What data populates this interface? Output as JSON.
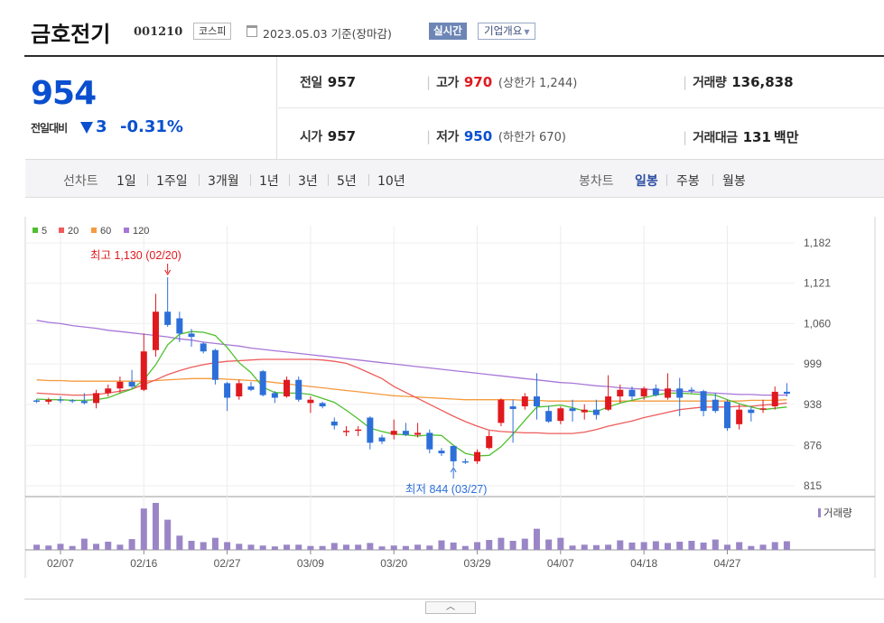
{
  "header": {
    "name": "금호전기",
    "code": "001210",
    "market": "코스피",
    "date": "2023.05.03",
    "basis": "기준(장마감)",
    "realtime_label": "실시간",
    "info_label": "기업개요"
  },
  "price": {
    "current": "954",
    "change_label": "전일대비",
    "change": "3",
    "change_direction": "down",
    "rate": "-0.31%"
  },
  "stats": {
    "prev_label": "전일",
    "prev": "957",
    "open_label": "시가",
    "open": "957",
    "high_label": "고가",
    "high": "970",
    "upper_limit_label": "상한가",
    "upper_limit": "1,244",
    "low_label": "저가",
    "low": "950",
    "lower_limit_label": "하한가",
    "lower_limit": "670",
    "volume_label": "거래량",
    "volume": "136,838",
    "amount_label": "거래대금",
    "amount": "131",
    "amount_unit": "백만"
  },
  "toolbar": {
    "line_chart_label": "선차트",
    "periods": [
      "1일",
      "1주일",
      "3개월",
      "1년",
      "3년",
      "5년",
      "10년"
    ],
    "candle_chart_label": "봉차트",
    "candle_periods": [
      "일봉",
      "주봉",
      "월봉"
    ],
    "candle_selected": "일봉"
  },
  "colors": {
    "up": "#e0191e",
    "down": "#2d6fd9",
    "ma5": "#4fbf2e",
    "ma20": "#ef5b5b",
    "ma60": "#f59a3f",
    "ma120": "#a777d8",
    "volume": "#9a86c6"
  },
  "chart_data": {
    "type": "candlestick",
    "legend": [
      {
        "name": "5",
        "color": "#4fbf2e"
      },
      {
        "name": "20",
        "color": "#ef5b5b"
      },
      {
        "name": "60",
        "color": "#f59a3f"
      },
      {
        "name": "120",
        "color": "#a777d8"
      }
    ],
    "y_ticks": [
      "1,182",
      "1,121",
      "1,060",
      "999",
      "938",
      "876",
      "815"
    ],
    "ylim": [
      815,
      1182
    ],
    "x_ticks": [
      "02/07",
      "02/16",
      "02/27",
      "03/09",
      "03/20",
      "03/29",
      "04/07",
      "04/18",
      "04/27"
    ],
    "high_annotation": "최고 1,130 (02/20)",
    "low_annotation": "최저 844 (03/27)",
    "volume_label": "거래량",
    "candles": [
      {
        "d": "02/03",
        "o": 944,
        "h": 946,
        "l": 940,
        "c": 942
      },
      {
        "d": "02/06",
        "o": 942,
        "h": 948,
        "l": 938,
        "c": 945
      },
      {
        "d": "02/07",
        "o": 945,
        "h": 950,
        "l": 940,
        "c": 944
      },
      {
        "d": "02/08",
        "o": 944,
        "h": 946,
        "l": 940,
        "c": 943
      },
      {
        "d": "02/09",
        "o": 943,
        "h": 955,
        "l": 938,
        "c": 940
      },
      {
        "d": "02/10",
        "o": 940,
        "h": 960,
        "l": 932,
        "c": 955
      },
      {
        "d": "02/13",
        "o": 955,
        "h": 968,
        "l": 950,
        "c": 962
      },
      {
        "d": "02/14",
        "o": 962,
        "h": 980,
        "l": 955,
        "c": 972
      },
      {
        "d": "02/15",
        "o": 972,
        "h": 990,
        "l": 962,
        "c": 965
      },
      {
        "d": "02/16",
        "o": 960,
        "h": 1045,
        "l": 958,
        "c": 1018
      },
      {
        "d": "02/17",
        "o": 1020,
        "h": 1105,
        "l": 1010,
        "c": 1078
      },
      {
        "d": "02/20",
        "o": 1078,
        "h": 1130,
        "l": 1055,
        "c": 1058
      },
      {
        "d": "02/21",
        "o": 1068,
        "h": 1078,
        "l": 1032,
        "c": 1045
      },
      {
        "d": "02/22",
        "o": 1045,
        "h": 1052,
        "l": 1025,
        "c": 1040
      },
      {
        "d": "02/23",
        "o": 1030,
        "h": 1032,
        "l": 1015,
        "c": 1018
      },
      {
        "d": "02/24",
        "o": 1020,
        "h": 1022,
        "l": 968,
        "c": 975
      },
      {
        "d": "02/27",
        "o": 970,
        "h": 972,
        "l": 928,
        "c": 948
      },
      {
        "d": "02/28",
        "o": 950,
        "h": 975,
        "l": 945,
        "c": 970
      },
      {
        "d": "03/02",
        "o": 965,
        "h": 972,
        "l": 958,
        "c": 960
      },
      {
        "d": "03/03",
        "o": 988,
        "h": 990,
        "l": 950,
        "c": 952
      },
      {
        "d": "03/06",
        "o": 955,
        "h": 958,
        "l": 940,
        "c": 948
      },
      {
        "d": "03/07",
        "o": 950,
        "h": 980,
        "l": 948,
        "c": 975
      },
      {
        "d": "03/08",
        "o": 975,
        "h": 980,
        "l": 942,
        "c": 945
      },
      {
        "d": "03/09",
        "o": 940,
        "h": 950,
        "l": 925,
        "c": 945
      },
      {
        "d": "03/10",
        "o": 940,
        "h": 942,
        "l": 932,
        "c": 935
      },
      {
        "d": "03/13",
        "o": 912,
        "h": 918,
        "l": 900,
        "c": 906
      },
      {
        "d": "03/14",
        "o": 896,
        "h": 905,
        "l": 890,
        "c": 898
      },
      {
        "d": "03/15",
        "o": 898,
        "h": 905,
        "l": 890,
        "c": 900
      },
      {
        "d": "03/16",
        "o": 918,
        "h": 920,
        "l": 870,
        "c": 880
      },
      {
        "d": "03/17",
        "o": 888,
        "h": 892,
        "l": 878,
        "c": 882
      },
      {
        "d": "03/20",
        "o": 892,
        "h": 915,
        "l": 885,
        "c": 898
      },
      {
        "d": "03/21",
        "o": 898,
        "h": 910,
        "l": 890,
        "c": 892
      },
      {
        "d": "03/22",
        "o": 892,
        "h": 910,
        "l": 888,
        "c": 895
      },
      {
        "d": "03/23",
        "o": 895,
        "h": 900,
        "l": 864,
        "c": 870
      },
      {
        "d": "03/24",
        "o": 868,
        "h": 872,
        "l": 860,
        "c": 864
      },
      {
        "d": "03/27",
        "o": 875,
        "h": 876,
        "l": 844,
        "c": 852
      },
      {
        "d": "03/28",
        "o": 852,
        "h": 856,
        "l": 848,
        "c": 850
      },
      {
        "d": "03/29",
        "o": 852,
        "h": 870,
        "l": 848,
        "c": 866
      },
      {
        "d": "03/30",
        "o": 872,
        "h": 898,
        "l": 870,
        "c": 890
      },
      {
        "d": "03/31",
        "o": 910,
        "h": 947,
        "l": 905,
        "c": 945
      },
      {
        "d": "04/03",
        "o": 935,
        "h": 945,
        "l": 880,
        "c": 931
      },
      {
        "d": "04/04",
        "o": 935,
        "h": 955,
        "l": 930,
        "c": 950
      },
      {
        "d": "04/05",
        "o": 950,
        "h": 985,
        "l": 915,
        "c": 935
      },
      {
        "d": "04/06",
        "o": 928,
        "h": 936,
        "l": 910,
        "c": 912
      },
      {
        "d": "04/07",
        "o": 913,
        "h": 935,
        "l": 908,
        "c": 932
      },
      {
        "d": "04/10",
        "o": 932,
        "h": 945,
        "l": 912,
        "c": 928
      },
      {
        "d": "04/11",
        "o": 926,
        "h": 938,
        "l": 915,
        "c": 930
      },
      {
        "d": "04/12",
        "o": 930,
        "h": 945,
        "l": 915,
        "c": 922
      },
      {
        "d": "04/13",
        "o": 930,
        "h": 982,
        "l": 928,
        "c": 950
      },
      {
        "d": "04/14",
        "o": 950,
        "h": 968,
        "l": 940,
        "c": 960
      },
      {
        "d": "04/17",
        "o": 960,
        "h": 965,
        "l": 945,
        "c": 950
      },
      {
        "d": "04/18",
        "o": 950,
        "h": 965,
        "l": 945,
        "c": 962
      },
      {
        "d": "04/19",
        "o": 962,
        "h": 968,
        "l": 950,
        "c": 952
      },
      {
        "d": "04/20",
        "o": 948,
        "h": 985,
        "l": 945,
        "c": 962
      },
      {
        "d": "04/21",
        "o": 962,
        "h": 978,
        "l": 920,
        "c": 948
      },
      {
        "d": "04/24",
        "o": 960,
        "h": 964,
        "l": 955,
        "c": 958
      },
      {
        "d": "04/25",
        "o": 958,
        "h": 960,
        "l": 920,
        "c": 928
      },
      {
        "d": "04/26",
        "o": 945,
        "h": 955,
        "l": 925,
        "c": 928
      },
      {
        "d": "04/27",
        "o": 942,
        "h": 945,
        "l": 898,
        "c": 902
      },
      {
        "d": "04/28",
        "o": 908,
        "h": 938,
        "l": 900,
        "c": 930
      },
      {
        "d": "05/01",
        "o": 930,
        "h": 935,
        "l": 912,
        "c": 925
      },
      {
        "d": "05/02",
        "o": 930,
        "h": 945,
        "l": 925,
        "c": 932
      },
      {
        "d": "05/03",
        "o": 935,
        "h": 965,
        "l": 930,
        "c": 957
      },
      {
        "d": "05/04",
        "o": 957,
        "h": 970,
        "l": 950,
        "c": 954
      }
    ],
    "volume": [
      12,
      10,
      14,
      9,
      26,
      14,
      19,
      12,
      25,
      96,
      109,
      70,
      33,
      21,
      18,
      28,
      18,
      14,
      12,
      10,
      8,
      12,
      12,
      9,
      9,
      16,
      12,
      12,
      16,
      8,
      10,
      9,
      12,
      10,
      22,
      17,
      9,
      18,
      23,
      28,
      21,
      26,
      49,
      24,
      28,
      10,
      12,
      11,
      12,
      22,
      17,
      18,
      20,
      16,
      19,
      21,
      17,
      24,
      12,
      18,
      9,
      12,
      18,
      20
    ],
    "ma5": [
      946,
      945,
      945,
      944,
      944,
      945,
      948,
      955,
      961,
      975,
      998,
      1028,
      1044,
      1048,
      1047,
      1042,
      1024,
      1001,
      986,
      964,
      956,
      955,
      955,
      953,
      947,
      941,
      929,
      916,
      902,
      897,
      893,
      892,
      890,
      892,
      891,
      876,
      864,
      860,
      861,
      874,
      893,
      914,
      934,
      935,
      937,
      933,
      928,
      927,
      934,
      940,
      944,
      948,
      952,
      955,
      955,
      954,
      953,
      952,
      945,
      939,
      934,
      930,
      932,
      934
    ],
    "ma20": [
      955,
      954,
      953,
      952,
      952,
      953,
      955,
      958,
      961,
      968,
      975,
      983,
      989,
      994,
      998,
      1001,
      1003,
      1004,
      1005,
      1006,
      1006,
      1006,
      1006,
      1006,
      1005,
      1003,
      1000,
      993,
      985,
      977,
      965,
      956,
      947,
      938,
      929,
      920,
      912,
      905,
      899,
      897,
      896,
      895,
      895,
      894,
      894,
      894,
      896,
      900,
      905,
      909,
      913,
      918,
      922,
      926,
      930,
      932,
      934,
      934,
      934,
      935,
      935,
      937,
      938,
      940
    ],
    "ma60": [
      975,
      974,
      974,
      973,
      973,
      973,
      973,
      973,
      973,
      973,
      974,
      975,
      976,
      977,
      977,
      977,
      976,
      975,
      974,
      973,
      971,
      969,
      967,
      965,
      963,
      961,
      959,
      957,
      955,
      953,
      951,
      950,
      949,
      948,
      947,
      946,
      945,
      945,
      945,
      945,
      945,
      944,
      944,
      943,
      943,
      943,
      943,
      943,
      943,
      943,
      943,
      943,
      943,
      943,
      943,
      943,
      943,
      943,
      943,
      943,
      944,
      944,
      944,
      945
    ],
    "ma120": [
      1065,
      1062,
      1060,
      1057,
      1055,
      1053,
      1050,
      1048,
      1046,
      1044,
      1042,
      1040,
      1037,
      1035,
      1032,
      1030,
      1028,
      1026,
      1023,
      1021,
      1019,
      1017,
      1015,
      1013,
      1011,
      1009,
      1007,
      1005,
      1003,
      1001,
      999,
      997,
      995,
      993,
      991,
      989,
      987,
      985,
      983,
      981,
      979,
      977,
      975,
      973,
      971,
      970,
      968,
      966,
      965,
      963,
      962,
      961,
      960,
      959,
      958,
      957,
      956,
      955,
      954,
      953,
      953,
      952,
      952,
      952
    ]
  }
}
